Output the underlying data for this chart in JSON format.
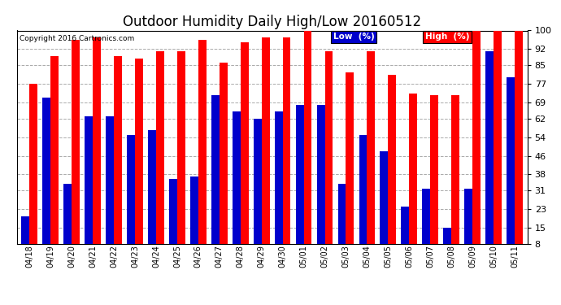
{
  "title": "Outdoor Humidity Daily High/Low 20160512",
  "copyright": "Copyright 2016 Cartronics.com",
  "categories": [
    "04/18",
    "04/19",
    "04/20",
    "04/21",
    "04/22",
    "04/23",
    "04/24",
    "04/25",
    "04/26",
    "04/27",
    "04/28",
    "04/29",
    "04/30",
    "05/01",
    "05/02",
    "05/03",
    "05/04",
    "05/05",
    "05/06",
    "05/07",
    "05/08",
    "05/09",
    "05/10",
    "05/11"
  ],
  "high": [
    77,
    89,
    96,
    97,
    89,
    88,
    91,
    91,
    96,
    86,
    95,
    97,
    97,
    100,
    91,
    82,
    91,
    81,
    73,
    72,
    72,
    100,
    100,
    100
  ],
  "low": [
    20,
    71,
    34,
    63,
    63,
    55,
    57,
    36,
    37,
    72,
    65,
    62,
    65,
    68,
    68,
    34,
    55,
    48,
    24,
    32,
    15,
    32,
    91,
    80
  ],
  "high_color": "#ff0000",
  "low_color": "#0000cc",
  "bg_color": "#ffffff",
  "grid_color": "#aaaaaa",
  "ylim_min": 8,
  "ylim_max": 100,
  "yticks": [
    8,
    15,
    23,
    31,
    38,
    46,
    54,
    62,
    69,
    77,
    85,
    92,
    100
  ],
  "legend_low_label": "Low  (%)",
  "legend_high_label": "High  (%)",
  "title_fontsize": 12,
  "bar_width": 0.38
}
